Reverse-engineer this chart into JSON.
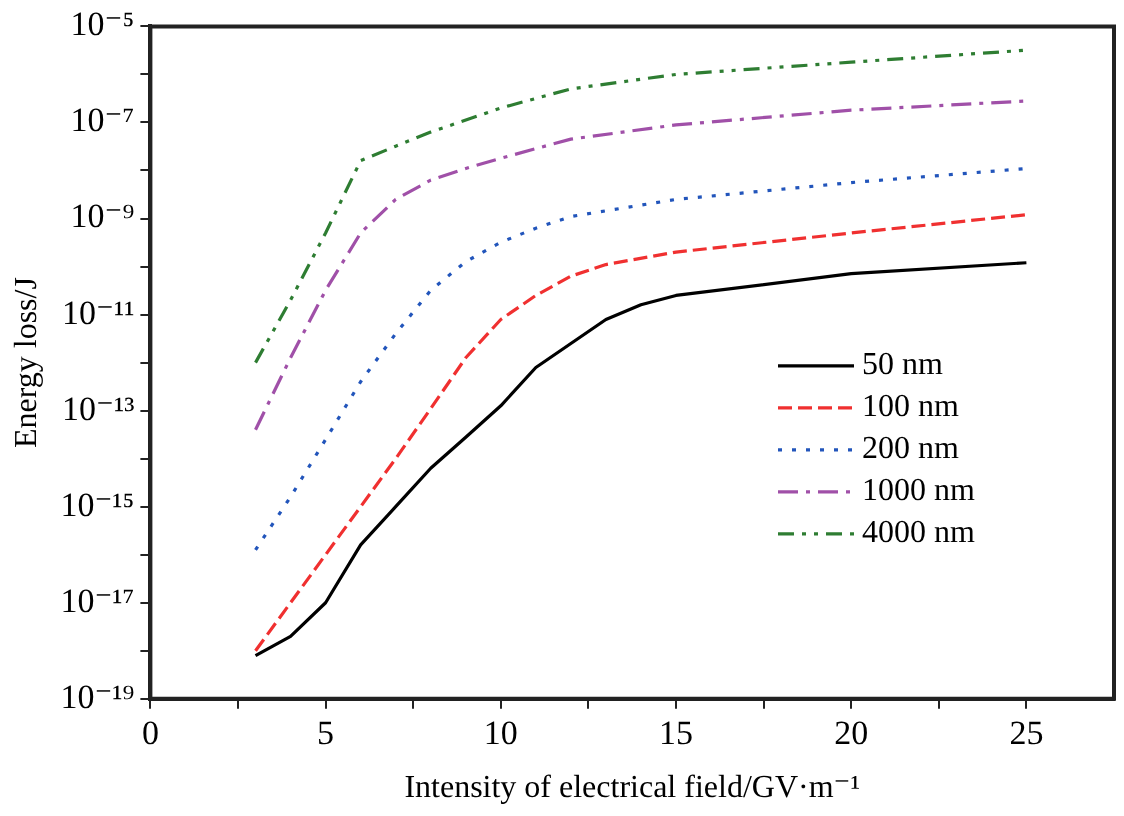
{
  "chart_data": {
    "type": "line",
    "xlabel": "Intensity of electrical field/GV·m⁻¹",
    "ylabel": "Energy loss/J",
    "log": "y",
    "grid": false,
    "legend": "bottom right",
    "marker": "none",
    "xlim": [
      0,
      27.5
    ],
    "xticks": [
      0,
      {
        "value": 2.5,
        "label": null
      },
      5,
      {
        "value": 7.5,
        "label": null
      },
      10,
      {
        "value": 12.5,
        "label": null
      },
      15,
      {
        "value": 17.5,
        "label": null
      },
      20,
      {
        "value": 22.5,
        "label": null
      },
      25
    ],
    "ylim": [
      1e-19,
      1e-05
    ],
    "yticks": [
      {
        "value": 1e-19,
        "label": "10⁻¹⁹"
      },
      {
        "value": 1e-18,
        "label": null
      },
      {
        "value": 1e-17,
        "label": "10⁻¹⁷"
      },
      {
        "value": 1e-16,
        "label": null
      },
      {
        "value": 1e-15,
        "label": "10⁻¹⁵"
      },
      {
        "value": 1e-14,
        "label": null
      },
      {
        "value": 1e-13,
        "label": "10⁻¹³"
      },
      {
        "value": 1e-12,
        "label": null
      },
      {
        "value": 1e-11,
        "label": "10⁻¹¹"
      },
      {
        "value": 1e-10,
        "label": null
      },
      {
        "value": 1e-09,
        "label": "10⁻⁹"
      },
      {
        "value": 1e-08,
        "label": null
      },
      {
        "value": 1e-07,
        "label": "10⁻⁷"
      },
      {
        "value": 1e-06,
        "label": null
      },
      {
        "value": 1e-05,
        "label": "10⁻⁵"
      }
    ],
    "series": [
      {
        "name": "50 nm",
        "color": "#000000",
        "line_style": "solid",
        "x": [
          3,
          4,
          5,
          6,
          7,
          8,
          9,
          10,
          11,
          12,
          13,
          14,
          15,
          20,
          25
        ],
        "values": [
          7.9e-19,
          2e-18,
          1e-17,
          1.6e-16,
          1e-15,
          6.3e-15,
          2.8e-14,
          1.26e-13,
          7.9e-13,
          2.5e-12,
          7.9e-12,
          1.6e-11,
          2.5e-11,
          7.1e-11,
          1.2e-10
        ]
      },
      {
        "name": "100 nm",
        "color": "#f03030",
        "line_style": "dashed",
        "x": [
          3,
          4,
          5,
          6,
          7,
          8,
          9,
          10,
          11,
          12,
          13,
          15,
          20,
          25
        ],
        "values": [
          1e-18,
          1e-17,
          1e-16,
          1e-15,
          1e-14,
          1.1e-13,
          1.26e-12,
          7.9e-12,
          2.5e-11,
          6.3e-11,
          1.1e-10,
          2e-10,
          5e-10,
          1.2e-09
        ]
      },
      {
        "name": "200 nm",
        "color": "#2255bb",
        "line_style": "dotted",
        "x": [
          3,
          4,
          5,
          6,
          7,
          8,
          9,
          10,
          11,
          12,
          15,
          20,
          25
        ],
        "values": [
          1.26e-16,
          1.6e-15,
          2.5e-14,
          4e-13,
          4e-12,
          3.2e-11,
          1.26e-10,
          3.2e-10,
          6.3e-10,
          1.1e-09,
          2.5e-09,
          5.6e-09,
          1.1e-08
        ]
      },
      {
        "name": "1000 nm",
        "color": "#a050a8",
        "line_style": "dashdot",
        "x": [
          3,
          4,
          5,
          6,
          7,
          8,
          9,
          10,
          12,
          15,
          20,
          25
        ],
        "values": [
          4e-14,
          1.26e-12,
          3.2e-11,
          5e-10,
          2.5e-09,
          6.3e-09,
          1.1e-08,
          1.8e-08,
          4.5e-08,
          8.9e-08,
          1.8e-07,
          2.8e-07
        ]
      },
      {
        "name": "4000 nm",
        "color": "#2e7d32",
        "line_style": "dashdotdot",
        "x": [
          3,
          4,
          5,
          6,
          7,
          8,
          10,
          12,
          15,
          20,
          25
        ],
        "values": [
          1e-12,
          2e-11,
          5e-10,
          1.6e-08,
          3.2e-08,
          6.3e-08,
          2e-07,
          5e-07,
          1e-06,
          1.8e-06,
          3.2e-06
        ]
      }
    ]
  }
}
